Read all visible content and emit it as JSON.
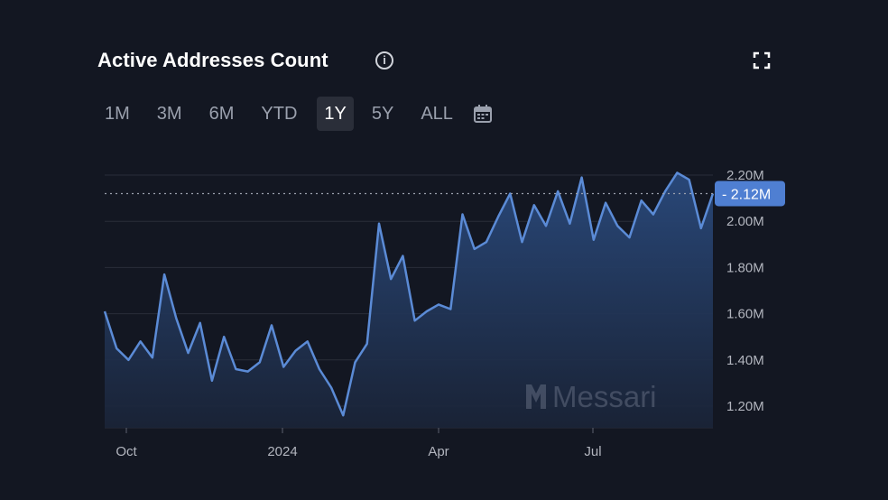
{
  "header": {
    "title": "Active Addresses Count",
    "info_icon": "info-circle-icon",
    "expand_icon": "fullscreen-icon"
  },
  "ranges": [
    {
      "label": "1M",
      "active": false
    },
    {
      "label": "3M",
      "active": false
    },
    {
      "label": "6M",
      "active": false
    },
    {
      "label": "YTD",
      "active": false
    },
    {
      "label": "1Y",
      "active": true
    },
    {
      "label": "5Y",
      "active": false
    },
    {
      "label": "ALL",
      "active": false
    }
  ],
  "calendar_icon": "calendar-icon",
  "watermark": "Messari",
  "colors": {
    "background": "#131722",
    "line": "#5b8bd6",
    "badge": "#4f7fd2",
    "grid": "#2a2e39"
  },
  "chart_data": {
    "type": "area",
    "title": "Active Addresses Count",
    "xlabel": "",
    "ylabel": "",
    "x_tick_labels": [
      "Oct",
      "2024",
      "Apr",
      "Jul"
    ],
    "y_tick_labels": [
      "1.20M",
      "1.40M",
      "1.60M",
      "1.80M",
      "2.00M",
      "2.20M"
    ],
    "ylim": [
      1.12,
      2.28
    ],
    "y_unit": "M",
    "current_value": 2.12,
    "current_label": "2.12M",
    "grid": true,
    "series": [
      {
        "values": [
          1.61,
          1.45,
          1.4,
          1.48,
          1.41,
          1.77,
          1.58,
          1.43,
          1.56,
          1.31,
          1.5,
          1.36,
          1.35,
          1.39,
          1.55,
          1.37,
          1.44,
          1.48,
          1.36,
          1.28,
          1.16,
          1.39,
          1.47,
          1.99,
          1.75,
          1.85,
          1.57,
          1.61,
          1.64,
          1.62,
          2.03,
          1.88,
          1.91,
          2.02,
          2.12,
          1.91,
          2.07,
          1.98,
          2.13,
          1.99,
          2.19,
          1.92,
          2.08,
          1.98,
          1.93,
          2.09,
          2.03,
          2.13,
          2.21,
          2.18,
          1.97,
          2.12
        ]
      }
    ]
  }
}
